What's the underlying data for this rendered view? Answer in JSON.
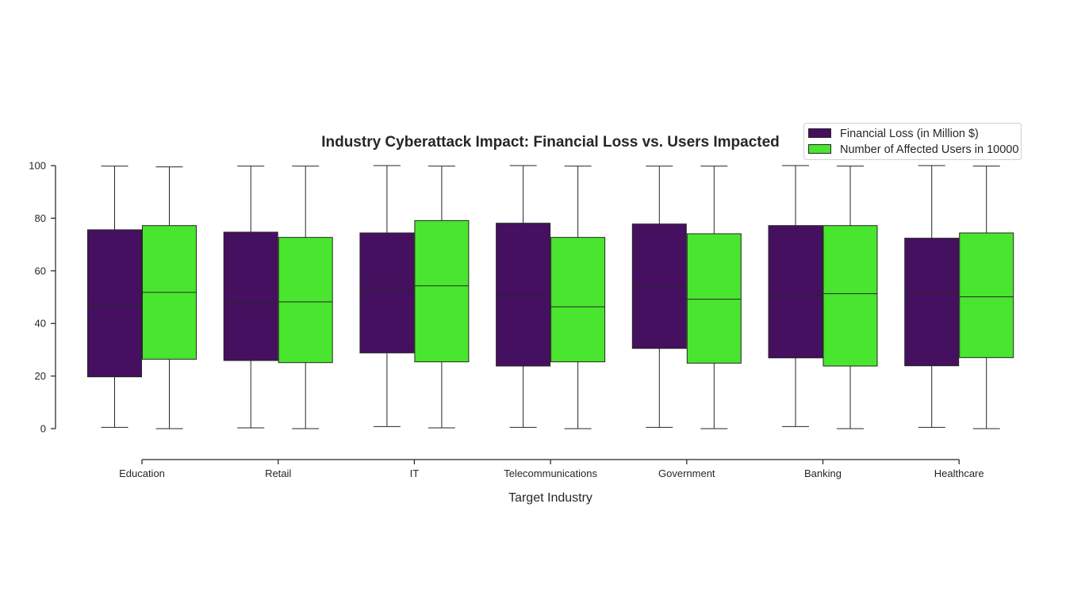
{
  "chart_data": {
    "type": "boxplot",
    "title": "Industry Cyberattack Impact: Financial Loss vs. Users Impacted",
    "xlabel": "Target Industry",
    "ylabel": "",
    "ylim": [
      0,
      100
    ],
    "yticks": [
      0,
      20,
      40,
      60,
      80,
      100
    ],
    "grid": false,
    "legend_position": "top-right",
    "categories": [
      "Education",
      "Retail",
      "IT",
      "Telecommunications",
      "Government",
      "Banking",
      "Healthcare"
    ],
    "series": [
      {
        "name": "Financial Loss (in Million $)",
        "color": "#45105f",
        "boxes": [
          {
            "min": 0.5,
            "q1": 19.7,
            "median": 46.9,
            "q3": 75.6,
            "max": 99.8
          },
          {
            "min": 0.3,
            "q1": 25.9,
            "median": 47.6,
            "q3": 74.7,
            "max": 99.8
          },
          {
            "min": 0.8,
            "q1": 28.8,
            "median": 53.3,
            "q3": 74.4,
            "max": 100.0
          },
          {
            "min": 0.5,
            "q1": 23.8,
            "median": 50.8,
            "q3": 78.1,
            "max": 100.0
          },
          {
            "min": 0.5,
            "q1": 30.5,
            "median": 54.1,
            "q3": 77.8,
            "max": 99.8
          },
          {
            "min": 0.8,
            "q1": 26.9,
            "median": 50.6,
            "q3": 77.2,
            "max": 100.0
          },
          {
            "min": 0.5,
            "q1": 23.9,
            "median": 51.6,
            "q3": 72.4,
            "max": 100.0
          }
        ]
      },
      {
        "name": "Number of Affected Users in 10000",
        "color": "#4ae52f",
        "boxes": [
          {
            "min": 0.0,
            "q1": 26.4,
            "median": 51.8,
            "q3": 77.2,
            "max": 99.5
          },
          {
            "min": 0.0,
            "q1": 25.1,
            "median": 48.2,
            "q3": 72.7,
            "max": 99.8
          },
          {
            "min": 0.3,
            "q1": 25.4,
            "median": 54.3,
            "q3": 79.1,
            "max": 99.8
          },
          {
            "min": 0.0,
            "q1": 25.4,
            "median": 46.3,
            "q3": 72.7,
            "max": 99.8
          },
          {
            "min": 0.0,
            "q1": 24.9,
            "median": 49.2,
            "q3": 74.1,
            "max": 99.8
          },
          {
            "min": 0.0,
            "q1": 23.8,
            "median": 51.3,
            "q3": 77.2,
            "max": 99.8
          },
          {
            "min": 0.0,
            "q1": 27.0,
            "median": 50.1,
            "q3": 74.4,
            "max": 99.8
          }
        ]
      }
    ]
  }
}
